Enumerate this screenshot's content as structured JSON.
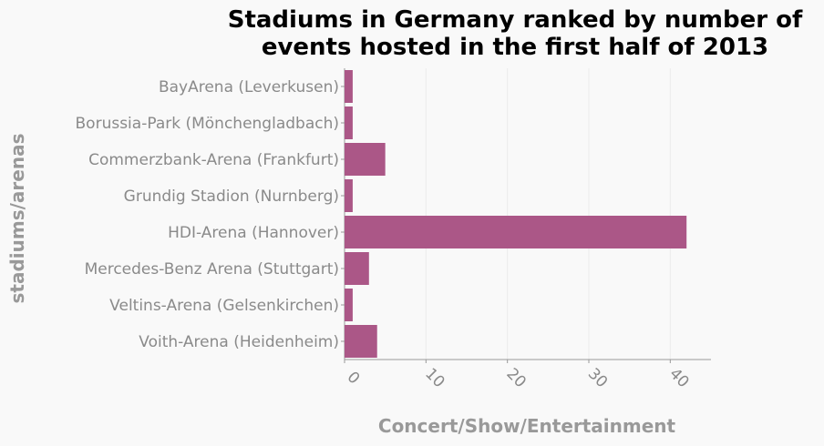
{
  "chart_data": {
    "type": "bar",
    "orientation": "horizontal",
    "title": "Stadiums in Germany ranked by number of events hosted in the first half of 2013",
    "title_lines": [
      "Stadiums in Germany ranked by number of",
      "events hosted in the first half of 2013"
    ],
    "xlabel": "Concert/Show/Entertainment",
    "ylabel": "stadiums/arenas",
    "categories": [
      "BayArena (Leverkusen)",
      "Borussia-Park (Mönchengladbach)",
      "Commerzbank-Arena (Frankfurt)",
      "Grundig Stadion (Nurnberg)",
      "HDI-Arena (Hannover)",
      "Mercedes-Benz Arena (Stuttgart)",
      "Veltins-Arena (Gelsenkirchen)",
      "Voith-Arena (Heidenheim)"
    ],
    "values": [
      1,
      1,
      5,
      1,
      42,
      3,
      1,
      4
    ],
    "xlim": [
      0,
      45
    ],
    "xticks": [
      0,
      10,
      20,
      30,
      40
    ],
    "grid": true,
    "bar_color": "#ab5787"
  }
}
